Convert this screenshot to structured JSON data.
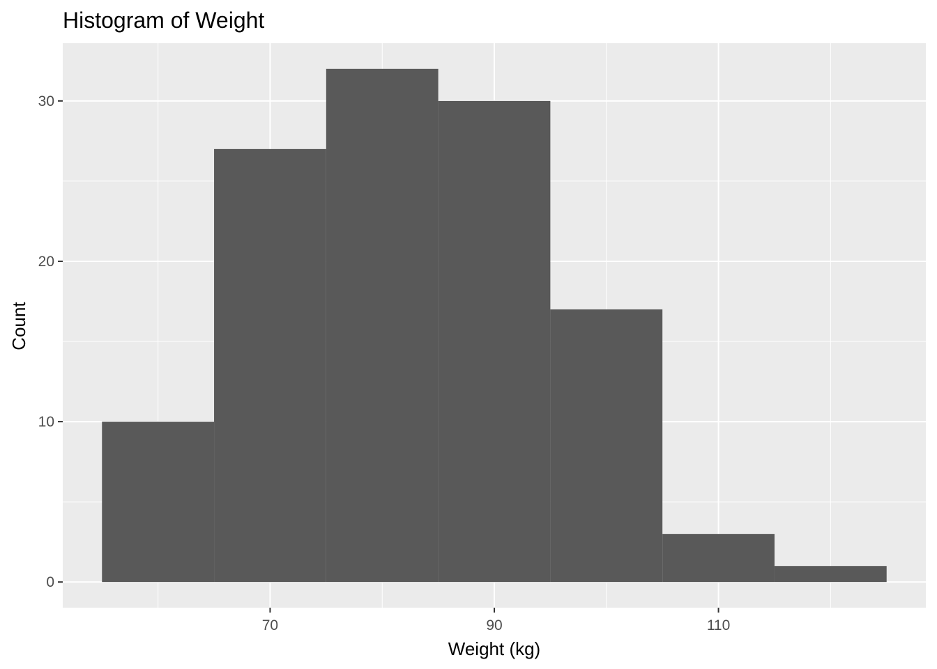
{
  "chart_data": {
    "type": "bar",
    "title": "Histogram of Weight",
    "xlabel": "Weight (kg)",
    "ylabel": "Count",
    "bins": [
      {
        "x0": 55,
        "x1": 65,
        "count": 10
      },
      {
        "x0": 65,
        "x1": 75,
        "count": 27
      },
      {
        "x0": 75,
        "x1": 85,
        "count": 32
      },
      {
        "x0": 85,
        "x1": 95,
        "count": 30
      },
      {
        "x0": 95,
        "x1": 105,
        "count": 17
      },
      {
        "x0": 105,
        "x1": 115,
        "count": 3
      },
      {
        "x0": 115,
        "x1": 125,
        "count": 1
      }
    ],
    "x_ticks": [
      70,
      90,
      110
    ],
    "x_tick_labels": [
      "70",
      "90",
      "110"
    ],
    "y_ticks": [
      0,
      10,
      20,
      30
    ],
    "y_tick_labels": [
      "0",
      "10",
      "20",
      "30"
    ],
    "xlim": [
      51.5,
      128.5
    ],
    "ylim": [
      -1.6,
      33.6
    ],
    "grid": true,
    "colors": {
      "panel_background": "#ebebeb",
      "grid_major": "#ffffff",
      "bar_fill": "#595959",
      "tick_text": "#4d4d4d",
      "tick_mark": "#333333"
    }
  }
}
